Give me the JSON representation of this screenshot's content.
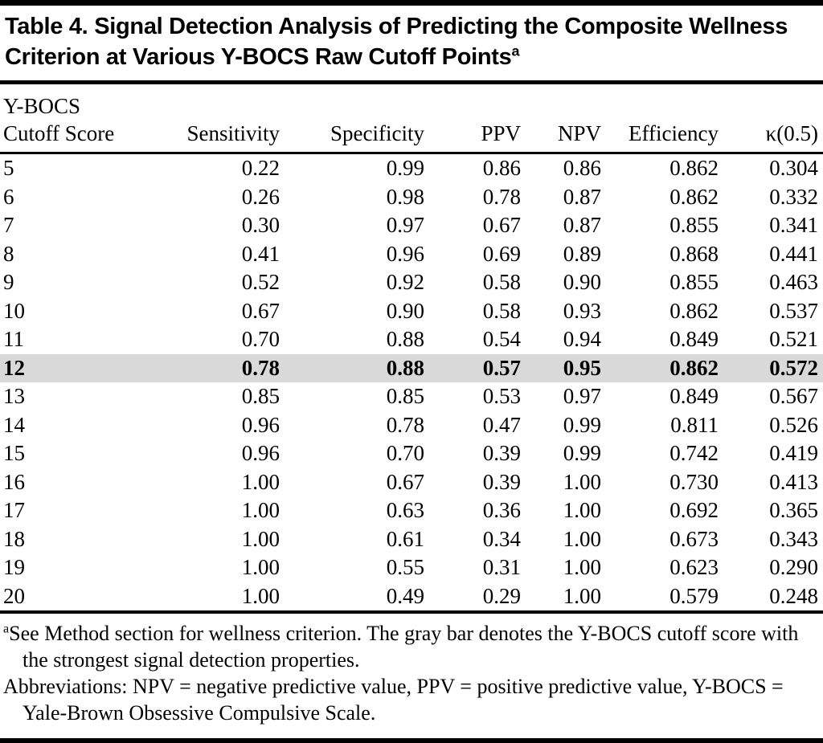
{
  "colors": {
    "highlight-row": "#d9d9d9",
    "rule": "#000000",
    "text": "#000000"
  },
  "table": {
    "title": "Table 4. Signal Detection Analysis of Predicting the Composite Wellness Criterion at Various Y-BOCS Raw Cutoff Points",
    "title_sup": "a",
    "header": {
      "cutoff_line1": "Y-BOCS",
      "cutoff_line2": "Cutoff Score",
      "columns": [
        "Sensitivity",
        "Specificity",
        "PPV",
        "NPV",
        "Efficiency",
        "κ(0.5)"
      ]
    },
    "rows": [
      {
        "cutoff": "5",
        "values": [
          "0.22",
          "0.99",
          "0.86",
          "0.86",
          "0.862",
          "0.304"
        ],
        "highlight": false
      },
      {
        "cutoff": "6",
        "values": [
          "0.26",
          "0.98",
          "0.78",
          "0.87",
          "0.862",
          "0.332"
        ],
        "highlight": false
      },
      {
        "cutoff": "7",
        "values": [
          "0.30",
          "0.97",
          "0.67",
          "0.87",
          "0.855",
          "0.341"
        ],
        "highlight": false
      },
      {
        "cutoff": "8",
        "values": [
          "0.41",
          "0.96",
          "0.69",
          "0.89",
          "0.868",
          "0.441"
        ],
        "highlight": false
      },
      {
        "cutoff": "9",
        "values": [
          "0.52",
          "0.92",
          "0.58",
          "0.90",
          "0.855",
          "0.463"
        ],
        "highlight": false
      },
      {
        "cutoff": "10",
        "values": [
          "0.67",
          "0.90",
          "0.58",
          "0.93",
          "0.862",
          "0.537"
        ],
        "highlight": false
      },
      {
        "cutoff": "11",
        "values": [
          "0.70",
          "0.88",
          "0.54",
          "0.94",
          "0.849",
          "0.521"
        ],
        "highlight": false
      },
      {
        "cutoff": "12",
        "values": [
          "0.78",
          "0.88",
          "0.57",
          "0.95",
          "0.862",
          "0.572"
        ],
        "highlight": true
      },
      {
        "cutoff": "13",
        "values": [
          "0.85",
          "0.85",
          "0.53",
          "0.97",
          "0.849",
          "0.567"
        ],
        "highlight": false
      },
      {
        "cutoff": "14",
        "values": [
          "0.96",
          "0.78",
          "0.47",
          "0.99",
          "0.811",
          "0.526"
        ],
        "highlight": false
      },
      {
        "cutoff": "15",
        "values": [
          "0.96",
          "0.70",
          "0.39",
          "0.99",
          "0.742",
          "0.419"
        ],
        "highlight": false
      },
      {
        "cutoff": "16",
        "values": [
          "1.00",
          "0.67",
          "0.39",
          "1.00",
          "0.730",
          "0.413"
        ],
        "highlight": false
      },
      {
        "cutoff": "17",
        "values": [
          "1.00",
          "0.63",
          "0.36",
          "1.00",
          "0.692",
          "0.365"
        ],
        "highlight": false
      },
      {
        "cutoff": "18",
        "values": [
          "1.00",
          "0.61",
          "0.34",
          "1.00",
          "0.673",
          "0.343"
        ],
        "highlight": false
      },
      {
        "cutoff": "19",
        "values": [
          "1.00",
          "0.55",
          "0.31",
          "1.00",
          "0.623",
          "0.290"
        ],
        "highlight": false
      },
      {
        "cutoff": "20",
        "values": [
          "1.00",
          "0.49",
          "0.29",
          "1.00",
          "0.579",
          "0.248"
        ],
        "highlight": false
      }
    ],
    "footnotes": [
      {
        "sup": "a",
        "text": "See Method section for wellness criterion. The gray bar denotes the Y-BOCS cutoff score with the strongest signal detection properties."
      },
      {
        "sup": "",
        "text": "Abbreviations: NPV = negative predictive value, PPV = positive predictive value, Y-BOCS = Yale-Brown Obsessive Compulsive Scale."
      }
    ]
  }
}
